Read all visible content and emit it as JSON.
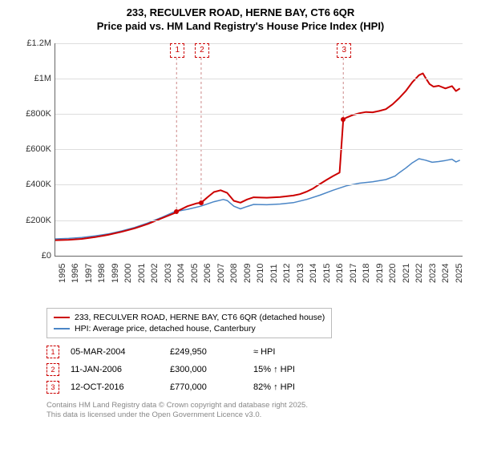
{
  "title_line1": "233, RECULVER ROAD, HERNE BAY, CT6 6QR",
  "title_line2": "Price paid vs. HM Land Registry's House Price Index (HPI)",
  "chart": {
    "type": "line",
    "background_color": "#ffffff",
    "grid_color": "#dddddd",
    "axis_color": "#666666",
    "label_fontsize": 11,
    "x_years": [
      1995,
      1996,
      1997,
      1998,
      1999,
      2000,
      2001,
      2002,
      2003,
      2004,
      2005,
      2006,
      2007,
      2008,
      2009,
      2010,
      2011,
      2012,
      2013,
      2014,
      2015,
      2016,
      2017,
      2018,
      2019,
      2020,
      2021,
      2022,
      2023,
      2024,
      2025
    ],
    "xlim": [
      1995,
      2025.8
    ],
    "ylim_k": [
      0,
      1200
    ],
    "ytick_labels": [
      "£0",
      "£200K",
      "£400K",
      "£600K",
      "£800K",
      "£1M",
      "£1.2M"
    ],
    "ytick_values_k": [
      0,
      200,
      400,
      600,
      800,
      1000,
      1200
    ],
    "series_price": {
      "label": "233, RECULVER ROAD, HERNE BAY, CT6 6QR (detached house)",
      "color": "#cc0000",
      "line_width": 2,
      "data_k": [
        [
          1995.0,
          88
        ],
        [
          1996.0,
          90
        ],
        [
          1997.0,
          95
        ],
        [
          1998.0,
          105
        ],
        [
          1999.0,
          118
        ],
        [
          2000.0,
          135
        ],
        [
          2001.0,
          155
        ],
        [
          2002.0,
          180
        ],
        [
          2003.0,
          210
        ],
        [
          2004.0,
          240
        ],
        [
          2004.17,
          249.95
        ],
        [
          2004.18,
          249.95
        ],
        [
          2005.0,
          280
        ],
        [
          2005.7,
          296
        ],
        [
          2006.03,
          300
        ],
        [
          2006.04,
          300
        ],
        [
          2006.5,
          330
        ],
        [
          2007.0,
          360
        ],
        [
          2007.5,
          370
        ],
        [
          2008.0,
          355
        ],
        [
          2008.5,
          310
        ],
        [
          2009.0,
          300
        ],
        [
          2009.5,
          318
        ],
        [
          2010.0,
          330
        ],
        [
          2011.0,
          328
        ],
        [
          2012.0,
          332
        ],
        [
          2013.0,
          340
        ],
        [
          2013.5,
          348
        ],
        [
          2014.0,
          362
        ],
        [
          2014.5,
          380
        ],
        [
          2015.0,
          405
        ],
        [
          2015.5,
          428
        ],
        [
          2016.0,
          450
        ],
        [
          2016.5,
          470
        ],
        [
          2016.78,
          770
        ],
        [
          2016.79,
          770
        ],
        [
          2017.0,
          780
        ],
        [
          2017.5,
          795
        ],
        [
          2018.0,
          805
        ],
        [
          2018.5,
          812
        ],
        [
          2019.0,
          810
        ],
        [
          2019.5,
          818
        ],
        [
          2020.0,
          828
        ],
        [
          2020.5,
          855
        ],
        [
          2021.0,
          890
        ],
        [
          2021.5,
          930
        ],
        [
          2022.0,
          980
        ],
        [
          2022.5,
          1020
        ],
        [
          2022.8,
          1030
        ],
        [
          2023.0,
          1005
        ],
        [
          2023.3,
          970
        ],
        [
          2023.6,
          955
        ],
        [
          2024.0,
          960
        ],
        [
          2024.5,
          945
        ],
        [
          2025.0,
          958
        ],
        [
          2025.3,
          930
        ],
        [
          2025.6,
          945
        ]
      ]
    },
    "series_hpi": {
      "label": "HPI: Average price, detached house, Canterbury",
      "color": "#4b86c6",
      "line_width": 1.5,
      "data_k": [
        [
          1995.0,
          95
        ],
        [
          1996.0,
          98
        ],
        [
          1997.0,
          103
        ],
        [
          1998.0,
          112
        ],
        [
          1999.0,
          123
        ],
        [
          2000.0,
          140
        ],
        [
          2001.0,
          160
        ],
        [
          2002.0,
          185
        ],
        [
          2003.0,
          215
        ],
        [
          2004.0,
          248
        ],
        [
          2005.0,
          262
        ],
        [
          2006.0,
          280
        ],
        [
          2007.0,
          305
        ],
        [
          2007.7,
          318
        ],
        [
          2008.0,
          312
        ],
        [
          2008.5,
          280
        ],
        [
          2009.0,
          265
        ],
        [
          2009.5,
          278
        ],
        [
          2010.0,
          290
        ],
        [
          2011.0,
          288
        ],
        [
          2012.0,
          292
        ],
        [
          2013.0,
          300
        ],
        [
          2014.0,
          318
        ],
        [
          2015.0,
          342
        ],
        [
          2016.0,
          370
        ],
        [
          2017.0,
          395
        ],
        [
          2018.0,
          410
        ],
        [
          2019.0,
          418
        ],
        [
          2020.0,
          430
        ],
        [
          2020.7,
          450
        ],
        [
          2021.0,
          468
        ],
        [
          2021.5,
          495
        ],
        [
          2022.0,
          525
        ],
        [
          2022.5,
          548
        ],
        [
          2023.0,
          540
        ],
        [
          2023.5,
          528
        ],
        [
          2024.0,
          532
        ],
        [
          2024.5,
          538
        ],
        [
          2025.0,
          545
        ],
        [
          2025.3,
          530
        ],
        [
          2025.6,
          540
        ]
      ]
    },
    "sale_markers": [
      {
        "n": "1",
        "year": 2004.17,
        "dashed_line": true
      },
      {
        "n": "2",
        "year": 2006.03,
        "dashed_line": true
      },
      {
        "n": "3",
        "year": 2016.78,
        "dashed_line": true
      }
    ]
  },
  "sales_table": [
    {
      "n": "1",
      "date": "05-MAR-2004",
      "price": "£249,950",
      "comp": "≈ HPI"
    },
    {
      "n": "2",
      "date": "11-JAN-2006",
      "price": "£300,000",
      "comp": "15% ↑ HPI"
    },
    {
      "n": "3",
      "date": "12-OCT-2016",
      "price": "£770,000",
      "comp": "82% ↑ HPI"
    }
  ],
  "footer_line1": "Contains HM Land Registry data © Crown copyright and database right 2025.",
  "footer_line2": "This data is licensed under the Open Government Licence v3.0."
}
